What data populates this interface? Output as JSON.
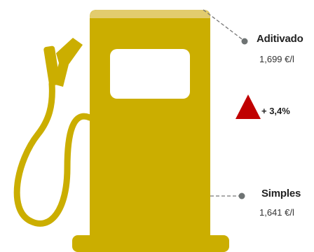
{
  "fuels": {
    "additive": {
      "name": "Aditivado",
      "price": "1,699 €/l"
    },
    "simple": {
      "name": "Simples",
      "price": "1,641 €/l"
    }
  },
  "change": {
    "value": "+ 3,4%",
    "direction": "up",
    "icon": "triangle-up-icon"
  },
  "colors": {
    "pump": "#CBAE00",
    "pump_top": "#E2CC6E",
    "pump_window": "#FFFFFF",
    "leader_line": "#777777",
    "marker": "#6E7373",
    "increase": "#C00000"
  }
}
